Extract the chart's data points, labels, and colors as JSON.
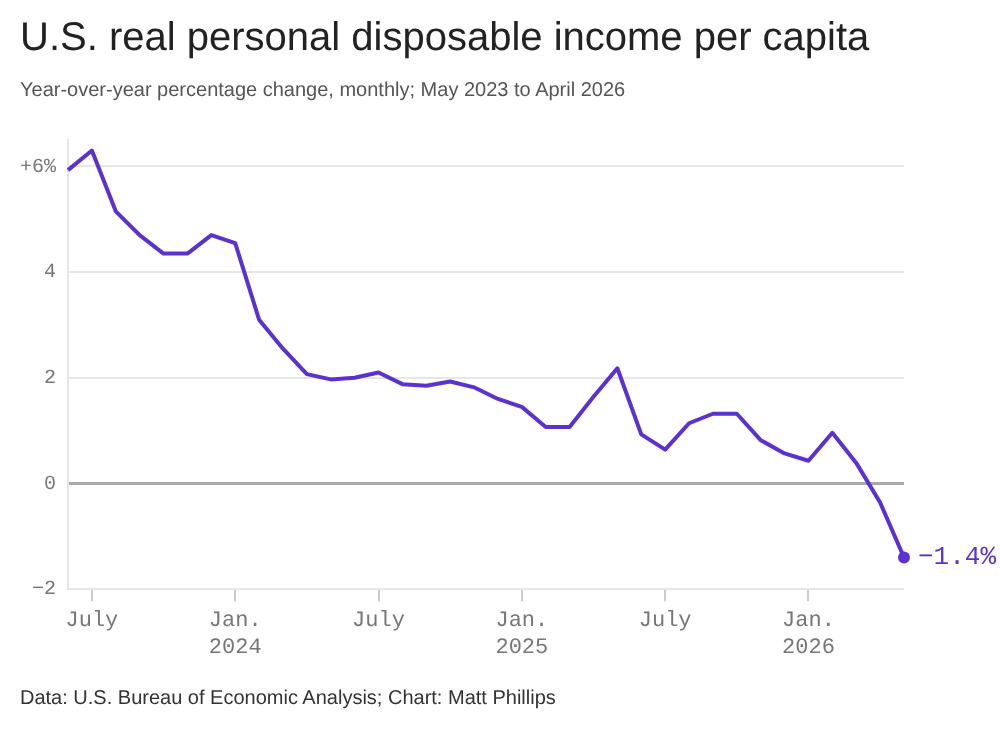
{
  "chart_data": {
    "type": "line",
    "title": "U.S. real personal disposable income per capita",
    "subtitle": "Year-over-year percentage change, monthly; May 2023 to April 2026",
    "categories": [
      null,
      "July",
      null,
      null,
      null,
      null,
      null,
      "Jan.\n2024",
      null,
      null,
      null,
      null,
      null,
      "July",
      null,
      null,
      null,
      null,
      null,
      "Jan.\n2025",
      null,
      null,
      null,
      null,
      null,
      "July",
      null,
      null,
      null,
      null,
      null,
      "Jan.\n2026",
      null,
      null,
      null,
      null
    ],
    "series": [
      {
        "color": "#5b32cf",
        "values": [
          5.93,
          6.3,
          5.15,
          4.7,
          4.35,
          4.35,
          4.7,
          4.55,
          3.1,
          2.55,
          2.07,
          1.97,
          2.0,
          2.1,
          1.88,
          1.85,
          1.93,
          1.82,
          1.6,
          1.45,
          1.07,
          1.07,
          1.64,
          2.18,
          0.93,
          0.64,
          1.14,
          1.32,
          1.32,
          0.82,
          0.57,
          0.43,
          0.96,
          0.39,
          -0.36,
          -1.4
        ],
        "value_labels": [
          null,
          null,
          null,
          null,
          null,
          null,
          null,
          null,
          null,
          null,
          null,
          null,
          null,
          null,
          null,
          null,
          null,
          null,
          null,
          null,
          null,
          null,
          null,
          null,
          null,
          null,
          null,
          null,
          null,
          null,
          null,
          null,
          null,
          null,
          null,
          "−1.4%"
        ]
      }
    ],
    "ylim": [
      -2,
      6.5
    ],
    "yticks": [
      {
        "value": 6,
        "label": "+6%"
      },
      4,
      2,
      0,
      {
        "value": -2,
        "label": "−2"
      }
    ],
    "grid": "y",
    "legend": false,
    "line_style": "solid",
    "annotations": [
      "Data: U.S. Bureau of Economic Analysis; Chart: Matt Phillips"
    ]
  }
}
